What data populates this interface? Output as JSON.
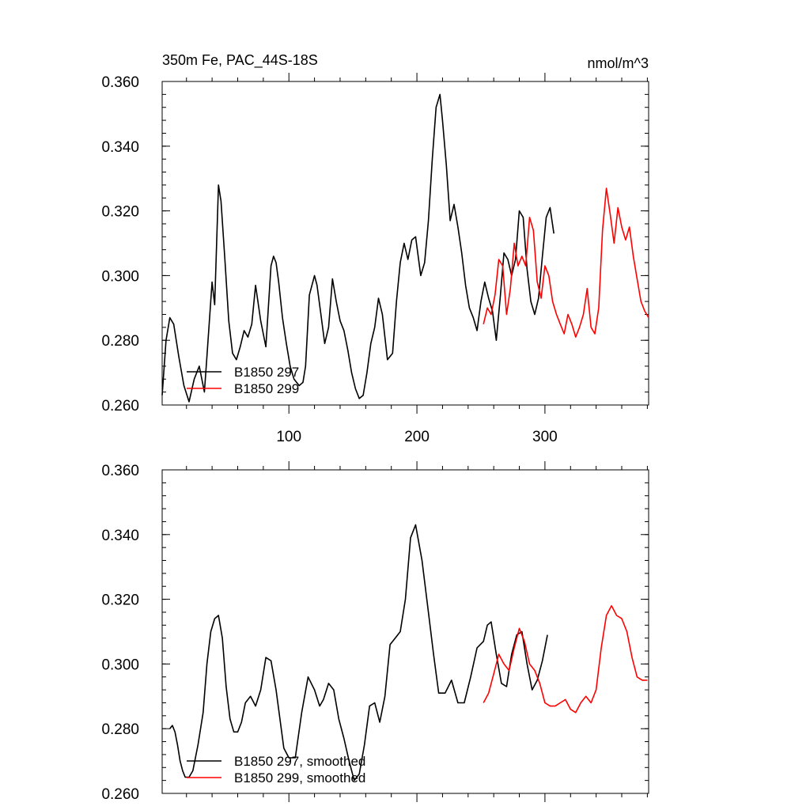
{
  "chart_data": [
    {
      "type": "line",
      "title_left": "350m Fe, PAC_44S-18S",
      "title_right": "nmol/m^3",
      "xlabel": "",
      "ylabel": "",
      "xlim": [
        1,
        381
      ],
      "ylim": [
        0.26,
        0.36
      ],
      "xticks": [
        100,
        200,
        300
      ],
      "xtick_labels": [
        "100",
        "200",
        "300"
      ],
      "yticks": [
        0.26,
        0.28,
        0.3,
        0.32,
        0.34,
        0.36
      ],
      "ytick_labels": [
        "0.260",
        "0.280",
        "0.300",
        "0.320",
        "0.340",
        "0.360"
      ],
      "grid": false,
      "legend_placement": "bottom-left",
      "series": [
        {
          "name": "B1850 297",
          "color": "#000000",
          "x": [
            1,
            4,
            7,
            10,
            14,
            18,
            22,
            26,
            30,
            34,
            36,
            40,
            42,
            45,
            47,
            50,
            53,
            56,
            59,
            62,
            65,
            68,
            71,
            74,
            78,
            82,
            86,
            88,
            90,
            92,
            95,
            98,
            101,
            104,
            108,
            111,
            113,
            116,
            120,
            122,
            125,
            128,
            131,
            134,
            137,
            140,
            143,
            146,
            149,
            152,
            155,
            158,
            161,
            164,
            167,
            170,
            173,
            177,
            181,
            184,
            187,
            190,
            193,
            196,
            199,
            203,
            206,
            209,
            212,
            215,
            218,
            220,
            223,
            226,
            229,
            232,
            235,
            238,
            241,
            244,
            247,
            250,
            253,
            256,
            259,
            262,
            265,
            268,
            271,
            274,
            277,
            280,
            283,
            286,
            289,
            292,
            295,
            298,
            301,
            304,
            307
          ],
          "y": [
            0.263,
            0.28,
            0.287,
            0.285,
            0.275,
            0.266,
            0.261,
            0.268,
            0.272,
            0.264,
            0.275,
            0.298,
            0.291,
            0.328,
            0.323,
            0.305,
            0.286,
            0.276,
            0.274,
            0.278,
            0.283,
            0.281,
            0.285,
            0.297,
            0.286,
            0.278,
            0.303,
            0.306,
            0.304,
            0.298,
            0.287,
            0.279,
            0.272,
            0.268,
            0.266,
            0.267,
            0.272,
            0.294,
            0.3,
            0.297,
            0.288,
            0.279,
            0.284,
            0.299,
            0.292,
            0.286,
            0.283,
            0.277,
            0.27,
            0.265,
            0.262,
            0.263,
            0.27,
            0.279,
            0.284,
            0.293,
            0.288,
            0.274,
            0.276,
            0.292,
            0.304,
            0.31,
            0.305,
            0.311,
            0.312,
            0.3,
            0.304,
            0.317,
            0.336,
            0.352,
            0.356,
            0.348,
            0.334,
            0.317,
            0.322,
            0.315,
            0.307,
            0.297,
            0.29,
            0.287,
            0.283,
            0.292,
            0.298,
            0.293,
            0.289,
            0.28,
            0.293,
            0.307,
            0.305,
            0.3,
            0.305,
            0.32,
            0.318,
            0.302,
            0.292,
            0.288,
            0.293,
            0.306,
            0.318,
            0.321,
            0.313
          ]
        },
        {
          "name": "B1850 299",
          "color": "#ff0000",
          "x": [
            252,
            255,
            258,
            261,
            264,
            267,
            270,
            273,
            276,
            279,
            282,
            285,
            288,
            291,
            294,
            297,
            300,
            303,
            306,
            309,
            312,
            315,
            318,
            321,
            324,
            327,
            330,
            333,
            336,
            339,
            342,
            345,
            348,
            351,
            354,
            357,
            360,
            363,
            366,
            369,
            372,
            375,
            378,
            381
          ],
          "y": [
            0.285,
            0.29,
            0.288,
            0.294,
            0.305,
            0.303,
            0.288,
            0.296,
            0.31,
            0.303,
            0.306,
            0.303,
            0.318,
            0.314,
            0.298,
            0.293,
            0.303,
            0.3,
            0.292,
            0.288,
            0.285,
            0.282,
            0.288,
            0.285,
            0.281,
            0.284,
            0.288,
            0.296,
            0.284,
            0.282,
            0.29,
            0.314,
            0.327,
            0.319,
            0.31,
            0.321,
            0.315,
            0.311,
            0.315,
            0.306,
            0.299,
            0.292,
            0.289,
            0.287
          ]
        }
      ]
    },
    {
      "type": "line",
      "title_left": "",
      "title_right": "",
      "xlabel": "",
      "ylabel": "",
      "xlim": [
        1,
        381
      ],
      "ylim": [
        0.26,
        0.36
      ],
      "xticks": [
        100,
        200,
        300
      ],
      "xtick_labels": [],
      "yticks": [
        0.26,
        0.28,
        0.3,
        0.32,
        0.34,
        0.36
      ],
      "ytick_labels": [
        "0.260",
        "0.280",
        "0.300",
        "0.320",
        "0.340",
        "0.360"
      ],
      "grid": false,
      "legend_placement": "bottom-left",
      "series": [
        {
          "name": "B1850 297, smoothed",
          "color": "#000000",
          "x": [
            7,
            9,
            11,
            13,
            15,
            17,
            19,
            22,
            25,
            29,
            33,
            36,
            39,
            42,
            45,
            48,
            51,
            54,
            57,
            60,
            63,
            66,
            70,
            74,
            78,
            82,
            86,
            90,
            93,
            96,
            100,
            105,
            110,
            115,
            120,
            124,
            127,
            131,
            135,
            139,
            143,
            147,
            151,
            155,
            159,
            163,
            167,
            171,
            175,
            179,
            183,
            187,
            191,
            195,
            199,
            204,
            209,
            213,
            217,
            222,
            227,
            232,
            237,
            242,
            247,
            252,
            255,
            258,
            262,
            266,
            270,
            274,
            278,
            282,
            286,
            290,
            294,
            298,
            302
          ],
          "y": [
            0.28,
            0.281,
            0.279,
            0.275,
            0.27,
            0.267,
            0.265,
            0.265,
            0.267,
            0.275,
            0.285,
            0.3,
            0.31,
            0.314,
            0.315,
            0.308,
            0.293,
            0.283,
            0.279,
            0.279,
            0.282,
            0.288,
            0.29,
            0.287,
            0.292,
            0.302,
            0.301,
            0.292,
            0.283,
            0.274,
            0.271,
            0.271,
            0.285,
            0.296,
            0.292,
            0.287,
            0.289,
            0.294,
            0.292,
            0.283,
            0.277,
            0.27,
            0.264,
            0.266,
            0.275,
            0.287,
            0.288,
            0.282,
            0.29,
            0.306,
            0.308,
            0.31,
            0.32,
            0.339,
            0.343,
            0.332,
            0.316,
            0.303,
            0.291,
            0.291,
            0.295,
            0.288,
            0.288,
            0.296,
            0.305,
            0.307,
            0.312,
            0.313,
            0.303,
            0.294,
            0.293,
            0.303,
            0.309,
            0.31,
            0.3,
            0.292,
            0.295,
            0.301,
            0.309
          ]
        },
        {
          "name": "B1850 299, smoothed",
          "color": "#ff0000",
          "x": [
            252,
            256,
            260,
            264,
            268,
            272,
            276,
            280,
            284,
            288,
            292,
            296,
            300,
            304,
            308,
            312,
            316,
            320,
            324,
            328,
            332,
            336,
            340,
            344,
            348,
            352,
            356,
            360,
            364,
            368,
            372,
            376,
            380
          ],
          "y": [
            0.288,
            0.291,
            0.297,
            0.303,
            0.3,
            0.298,
            0.305,
            0.311,
            0.307,
            0.3,
            0.298,
            0.294,
            0.288,
            0.287,
            0.287,
            0.288,
            0.289,
            0.286,
            0.285,
            0.288,
            0.29,
            0.288,
            0.292,
            0.305,
            0.315,
            0.318,
            0.315,
            0.314,
            0.31,
            0.302,
            0.296,
            0.295,
            0.295
          ]
        }
      ]
    }
  ]
}
